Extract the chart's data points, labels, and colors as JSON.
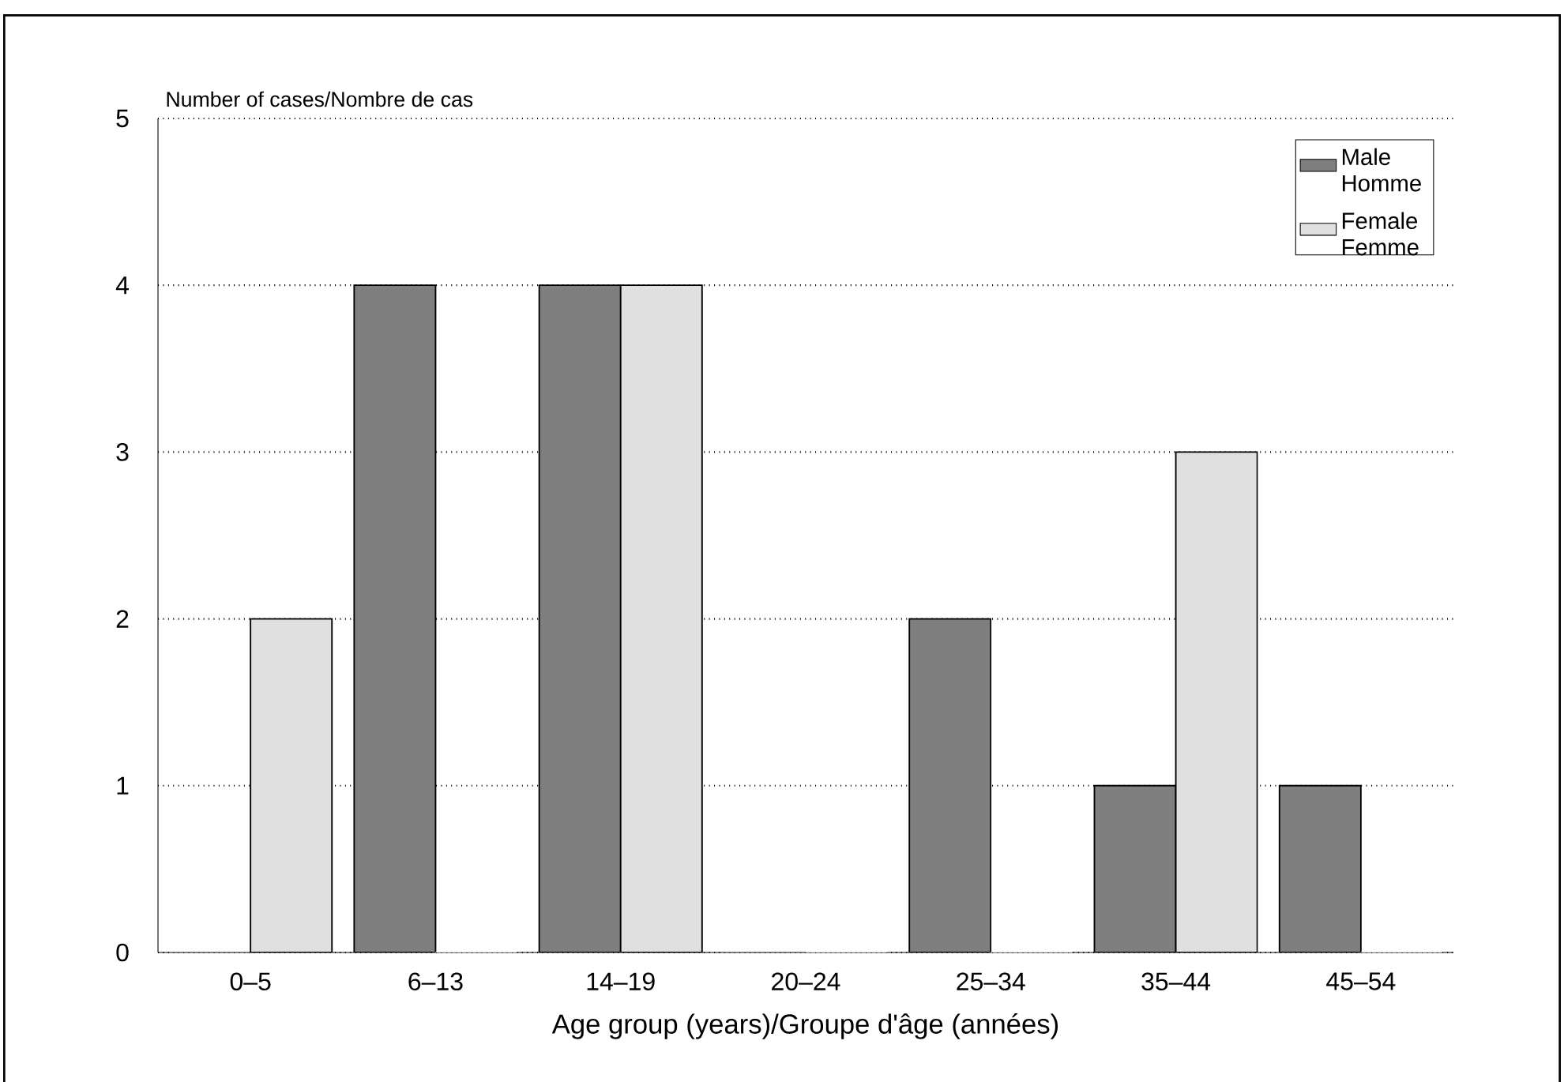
{
  "chart_data": {
    "type": "bar",
    "xlabel": "Age group (years)/Groupe d'âge (années)",
    "ylabel": "Number of cases/Nombre de cas",
    "categories": [
      "0–5",
      "6–13",
      "14–19",
      "20–24",
      "25–34",
      "35–44",
      "45–54"
    ],
    "series": [
      {
        "name": "Male Homme",
        "color": "#7f7f7f",
        "values": [
          0,
          4,
          4,
          0,
          2,
          1,
          1
        ]
      },
      {
        "name": "Female Femme",
        "color": "#e0e0e0",
        "values": [
          2,
          0,
          4,
          0,
          0,
          3,
          0
        ]
      }
    ],
    "ylim": [
      0,
      5
    ],
    "yticks": [
      0,
      1,
      2,
      3,
      4,
      5
    ],
    "grid": "y",
    "legend": "top right"
  }
}
